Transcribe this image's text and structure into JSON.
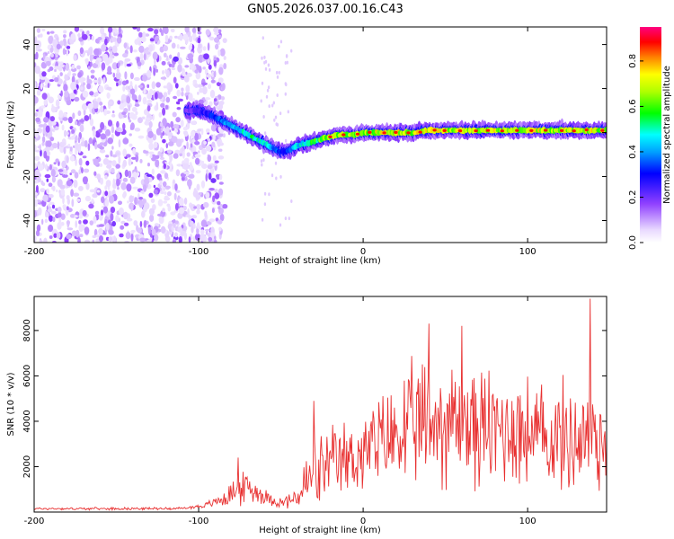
{
  "title": "GN05.2026.037.00.16.C43",
  "chart_data": [
    {
      "type": "heatmap",
      "title": "GN05.2026.037.00.16.C43",
      "xlabel": "Height of straight line (km)",
      "ylabel": "Frequency (Hz)",
      "xlim": [
        -200,
        148
      ],
      "ylim": [
        -50,
        48
      ],
      "xticks": [
        -200,
        -100,
        0,
        100
      ],
      "yticks": [
        -40,
        -20,
        0,
        20,
        40
      ],
      "colorbar": {
        "label": "Normalized spectral amplitude",
        "range": [
          0,
          0.95
        ],
        "ticks": [
          0.0,
          0.2,
          0.4,
          0.6,
          0.8
        ],
        "tick_labels": [
          "0.0",
          "0.2",
          "0.4",
          "0.6",
          "0.8"
        ]
      },
      "noise_region": {
        "x_from": -200,
        "x_to": -88,
        "amplitude": "low (0.05-0.2)"
      },
      "ridge": {
        "description": "main spectral ridge (frequency vs height)",
        "x": [
          -108,
          -100,
          -95,
          -90,
          -85,
          -80,
          -75,
          -70,
          -65,
          -60,
          -55,
          -50,
          -45,
          -40,
          -35,
          -30,
          -25,
          -20,
          -15,
          -10,
          -5,
          0,
          10,
          20,
          30,
          40,
          50,
          60,
          70,
          80,
          90,
          100,
          110,
          120,
          130,
          140,
          148
        ],
        "frequency": [
          10,
          10,
          9,
          7,
          5,
          3,
          1,
          -1,
          -3,
          -5,
          -7,
          -9,
          -8,
          -6,
          -5,
          -4,
          -3,
          -2,
          -1,
          -1,
          -1,
          0,
          0,
          0,
          0,
          1,
          1,
          1,
          1,
          1,
          1,
          1,
          1,
          1,
          1,
          1,
          1
        ],
        "amplitude": [
          0.2,
          0.25,
          0.3,
          0.35,
          0.4,
          0.45,
          0.5,
          0.55,
          0.55,
          0.5,
          0.45,
          0.35,
          0.4,
          0.5,
          0.55,
          0.6,
          0.65,
          0.7,
          0.7,
          0.7,
          0.7,
          0.7,
          0.75,
          0.75,
          0.75,
          0.75,
          0.75,
          0.75,
          0.75,
          0.75,
          0.75,
          0.75,
          0.75,
          0.75,
          0.75,
          0.75,
          0.75
        ]
      }
    },
    {
      "type": "line",
      "xlabel": "Height of straight line (km)",
      "ylabel": "SNR (10 * v/v)",
      "xlim": [
        -200,
        148
      ],
      "ylim": [
        0,
        9500
      ],
      "xticks": [
        -200,
        -100,
        0,
        100
      ],
      "yticks": [
        2000,
        4000,
        6000,
        8000
      ],
      "color": "#e83030",
      "envelope": {
        "x": [
          -200,
          -150,
          -110,
          -95,
          -85,
          -78,
          -70,
          -60,
          -50,
          -40,
          -35,
          -30,
          -20,
          -10,
          0,
          10,
          20,
          30,
          40,
          50,
          60,
          70,
          80,
          90,
          100,
          110,
          120,
          130,
          140,
          148
        ],
        "mean": [
          150,
          150,
          160,
          300,
          600,
          900,
          1100,
          700,
          400,
          600,
          1200,
          1600,
          2000,
          2300,
          2600,
          3000,
          3400,
          3700,
          3900,
          4000,
          3900,
          3700,
          3600,
          3800,
          3500,
          3200,
          3300,
          3200,
          3400,
          3000
        ],
        "spread": [
          60,
          60,
          60,
          150,
          400,
          700,
          800,
          400,
          250,
          600,
          1500,
          1700,
          1800,
          1900,
          2000,
          2300,
          2700,
          3000,
          3200,
          3200,
          3000,
          3000,
          3000,
          3000,
          2800,
          2600,
          2700,
          2800,
          3000,
          2500
        ],
        "peaks": [
          [
            -76,
            2400
          ],
          [
            -30,
            4900
          ],
          [
            40,
            8300
          ],
          [
            60,
            8200
          ],
          [
            138,
            9400
          ]
        ]
      }
    }
  ]
}
